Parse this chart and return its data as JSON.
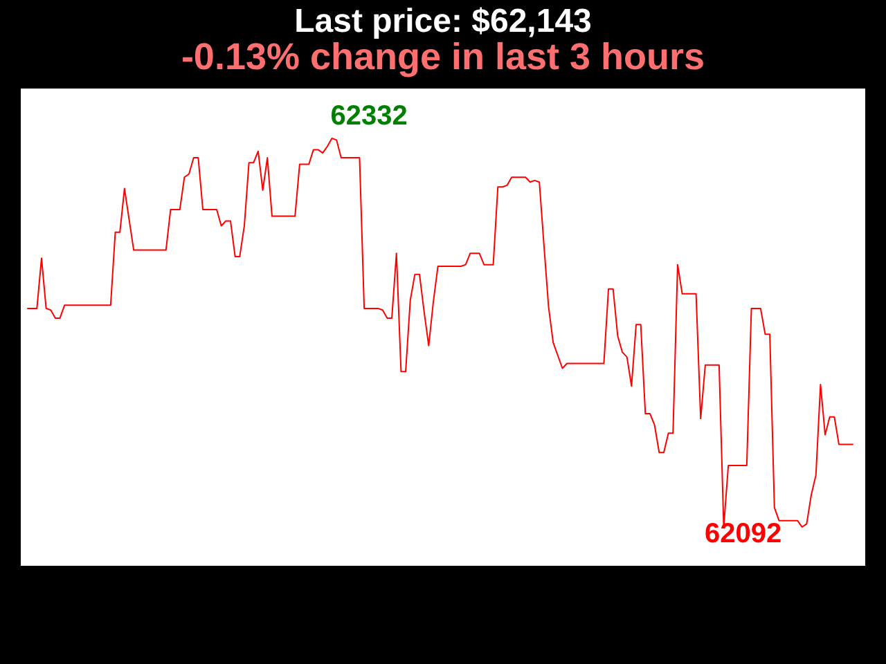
{
  "chart_data": {
    "type": "line",
    "title": "Last price: $62,143",
    "subtitle": "-0.13% change in last 3 hours",
    "tick_labels": false,
    "color": "#ff0000",
    "categories": [
      null,
      null,
      null,
      null,
      null,
      null,
      null,
      null,
      null,
      null,
      null,
      null,
      null,
      null,
      null,
      null,
      null,
      null,
      null,
      null,
      null,
      null,
      null,
      null,
      null,
      null,
      null,
      null,
      null,
      null,
      null,
      null,
      null,
      null,
      null,
      null,
      null,
      null,
      null,
      null,
      null,
      null,
      null,
      null,
      null,
      null,
      null,
      null,
      null,
      null,
      null,
      null,
      null,
      null,
      null,
      null,
      null,
      null,
      null,
      null,
      null,
      null,
      null,
      null,
      null,
      null,
      null,
      null,
      null,
      null,
      null,
      null,
      null,
      null,
      null,
      null,
      null,
      null,
      null,
      null,
      null,
      null,
      null,
      null,
      null,
      null,
      null,
      null,
      null,
      null,
      null,
      null,
      null,
      null,
      null,
      null,
      null,
      null,
      null,
      null,
      null,
      null,
      null,
      null,
      null,
      null,
      null,
      null,
      null,
      null,
      null,
      null,
      null,
      null,
      null,
      null,
      null,
      null,
      null,
      null,
      null,
      null,
      null,
      null,
      null,
      null,
      null,
      null,
      null,
      null,
      null,
      null,
      null,
      null,
      null,
      null,
      null,
      null,
      null,
      null,
      null,
      null,
      null,
      null,
      null,
      null,
      null,
      null,
      null,
      null,
      null,
      null,
      null,
      null,
      null,
      null,
      null,
      null,
      null,
      null,
      null,
      null,
      null,
      null,
      null,
      null,
      null,
      null,
      null,
      null,
      null,
      null,
      null,
      null,
      null,
      null,
      null,
      null,
      null,
      null
    ],
    "values": [
      62227,
      62227,
      62227,
      62258,
      62227,
      62226,
      62221,
      62221,
      62229,
      62229,
      62229,
      62229,
      62229,
      62229,
      62229,
      62229,
      62229,
      62229,
      62229,
      62274,
      62274,
      62301,
      62282,
      62263,
      62263,
      62263,
      62263,
      62263,
      62263,
      62263,
      62263,
      62288,
      62288,
      62288,
      62308,
      62310,
      62320,
      62320,
      62288,
      62288,
      62288,
      62288,
      62278,
      62281,
      62281,
      62259,
      62259,
      62278,
      62317,
      62317,
      62324,
      62300,
      62320,
      62284,
      62284,
      62284,
      62284,
      62284,
      62284,
      62316,
      62316,
      62316,
      62325,
      62325,
      62323,
      62327,
      62332,
      62331,
      62320,
      62320,
      62320,
      62320,
      62320,
      62227,
      62227,
      62227,
      62227,
      62226,
      62221,
      62221,
      62261,
      62188,
      62188,
      62232,
      62248,
      62248,
      62225,
      62204,
      62231,
      62253,
      62253,
      62253,
      62253,
      62253,
      62253,
      62254,
      62261,
      62261,
      62261,
      62254,
      62254,
      62254,
      62302,
      62302,
      62303,
      62308,
      62308,
      62308,
      62308,
      62305,
      62306,
      62305,
      62266,
      62228,
      62206,
      62198,
      62190,
      62193,
      62193,
      62193,
      62193,
      62193,
      62193,
      62193,
      62193,
      62193,
      62239,
      62239,
      62210,
      62200,
      62197,
      62179,
      62217,
      62217,
      62162,
      62162,
      62155,
      62138,
      62138,
      62150,
      62150,
      62254,
      62236,
      62236,
      62236,
      62236,
      62159,
      62192,
      62192,
      62192,
      62192,
      62092,
      62130,
      62130,
      62130,
      62130,
      62130,
      62227,
      62227,
      62227,
      62211,
      62211,
      62104,
      62096,
      62096,
      62096,
      62096,
      62096,
      62092,
      62094,
      62112,
      62124,
      62180,
      62149,
      62160,
      62160,
      62143,
      62143,
      62143,
      62143
    ],
    "value_labels": [
      null,
      null,
      null,
      null,
      null,
      null,
      null,
      null,
      null,
      null,
      null,
      null,
      null,
      null,
      null,
      null,
      null,
      null,
      null,
      null,
      null,
      null,
      null,
      null,
      null,
      null,
      null,
      null,
      null,
      null,
      null,
      null,
      null,
      null,
      null,
      null,
      null,
      null,
      null,
      null,
      null,
      null,
      null,
      null,
      null,
      null,
      null,
      null,
      null,
      null,
      null,
      null,
      null,
      null,
      null,
      null,
      null,
      null,
      null,
      null,
      null,
      null,
      null,
      null,
      null,
      null,
      "62332",
      null,
      null,
      null,
      null,
      null,
      null,
      null,
      null,
      null,
      null,
      null,
      null,
      null,
      null,
      null,
      null,
      null,
      null,
      null,
      null,
      null,
      null,
      null,
      null,
      null,
      null,
      null,
      null,
      null,
      null,
      null,
      null,
      null,
      null,
      null,
      null,
      null,
      null,
      null,
      null,
      null,
      null,
      null,
      null,
      null,
      null,
      null,
      null,
      null,
      null,
      null,
      null,
      null,
      null,
      null,
      null,
      null,
      null,
      null,
      null,
      null,
      null,
      null,
      null,
      null,
      null,
      null,
      null,
      null,
      null,
      null,
      null,
      null,
      null,
      null,
      null,
      null,
      null,
      null,
      null,
      null,
      null,
      null,
      null,
      "62092",
      null,
      null,
      null,
      null,
      null,
      null,
      null,
      null,
      null,
      null,
      null,
      null,
      null,
      null,
      null,
      null,
      null,
      null,
      null,
      null,
      null,
      null,
      null,
      null,
      null,
      null,
      null,
      null
    ]
  }
}
